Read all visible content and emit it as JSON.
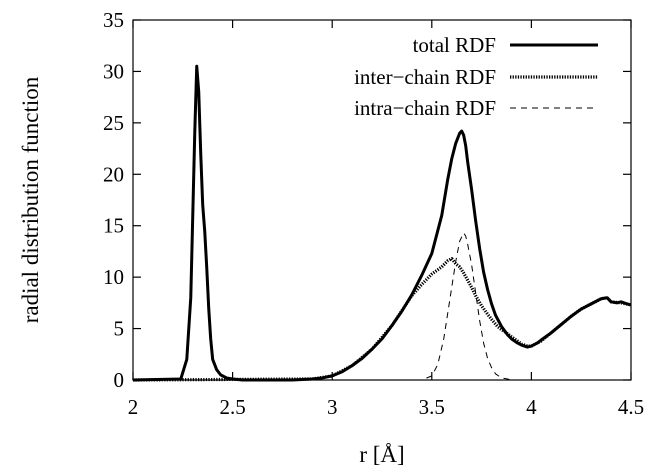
{
  "chart_data": {
    "type": "line",
    "title": "",
    "xlabel": "r [Å]",
    "ylabel": "radial distribution function",
    "xlim": [
      2,
      4.5
    ],
    "ylim": [
      0,
      35
    ],
    "xticks": [
      "2",
      "2.5",
      "3",
      "3.5",
      "4",
      "4.5"
    ],
    "yticks": [
      "0",
      "5",
      "10",
      "15",
      "20",
      "25",
      "30",
      "35"
    ],
    "grid": false,
    "legend_position": "top-right",
    "series": [
      {
        "name": "total RDF",
        "style": "solid-thick",
        "color": "#000000",
        "x": [
          2.0,
          2.24,
          2.27,
          2.29,
          2.3,
          2.31,
          2.32,
          2.33,
          2.34,
          2.35,
          2.36,
          2.37,
          2.38,
          2.39,
          2.4,
          2.42,
          2.44,
          2.47,
          2.5,
          2.55,
          2.6,
          2.7,
          2.8,
          2.9,
          2.95,
          3.0,
          3.05,
          3.1,
          3.15,
          3.2,
          3.25,
          3.3,
          3.35,
          3.4,
          3.45,
          3.5,
          3.55,
          3.58,
          3.6,
          3.62,
          3.64,
          3.65,
          3.66,
          3.67,
          3.68,
          3.7,
          3.72,
          3.74,
          3.76,
          3.78,
          3.8,
          3.82,
          3.85,
          3.88,
          3.9,
          3.93,
          3.95,
          3.98,
          4.0,
          4.03,
          4.05,
          4.1,
          4.15,
          4.2,
          4.25,
          4.3,
          4.35,
          4.38,
          4.4,
          4.43,
          4.45,
          4.48,
          4.5
        ],
        "y": [
          0,
          0.1,
          2,
          8,
          16,
          24,
          30.5,
          28,
          22,
          17,
          14.5,
          11,
          7,
          4,
          2,
          1,
          0.5,
          0.2,
          0.1,
          0,
          0,
          0,
          0,
          0.1,
          0.2,
          0.4,
          0.8,
          1.4,
          2.1,
          3.0,
          4.0,
          5.3,
          6.7,
          8.3,
          10.2,
          12.3,
          16,
          19.5,
          21.5,
          23,
          24,
          24.2,
          23.8,
          22.8,
          21.2,
          18.5,
          15.5,
          12.8,
          10.5,
          8.8,
          7.4,
          6.3,
          5.2,
          4.4,
          4.0,
          3.6,
          3.4,
          3.2,
          3.3,
          3.6,
          3.9,
          4.6,
          5.4,
          6.2,
          6.9,
          7.4,
          7.9,
          8.0,
          7.6,
          7.5,
          7.6,
          7.4,
          7.3
        ]
      },
      {
        "name": "inter−chain RDF",
        "style": "dotted-thick",
        "color": "#000000",
        "x": [
          2.0,
          2.9,
          3.0,
          3.1,
          3.2,
          3.3,
          3.4,
          3.45,
          3.5,
          3.55,
          3.58,
          3.6,
          3.62,
          3.64,
          3.66,
          3.68,
          3.7,
          3.72,
          3.75,
          3.78,
          3.8,
          3.83,
          3.85,
          3.88,
          3.9,
          3.93,
          3.95,
          3.98,
          4.0,
          4.05,
          4.1,
          4.15,
          4.2,
          4.25,
          4.3,
          4.35,
          4.38,
          4.4,
          4.45,
          4.5
        ],
        "y": [
          0,
          0.1,
          0.4,
          1.4,
          3.0,
          5.3,
          8.2,
          9.3,
          10.3,
          11.0,
          11.6,
          11.8,
          11.3,
          11.0,
          10.4,
          9.7,
          9.0,
          8.2,
          7.2,
          6.4,
          5.9,
          5.2,
          4.9,
          4.5,
          4.2,
          3.8,
          3.5,
          3.3,
          3.3,
          3.8,
          4.6,
          5.4,
          6.2,
          6.9,
          7.4,
          7.9,
          8.0,
          7.6,
          7.5,
          7.3
        ]
      },
      {
        "name": "intra−chain RDF",
        "style": "dashed-thin",
        "color": "#000000",
        "x": [
          2.0,
          2.24,
          2.27,
          2.29,
          2.3,
          2.31,
          2.32,
          2.33,
          2.34,
          2.35,
          2.36,
          2.37,
          2.38,
          2.39,
          2.4,
          2.42,
          2.44,
          2.47,
          2.5,
          3.45,
          3.5,
          3.53,
          3.56,
          3.58,
          3.6,
          3.62,
          3.64,
          3.66,
          3.67,
          3.68,
          3.7,
          3.72,
          3.74,
          3.76,
          3.78,
          3.8,
          3.82,
          3.85,
          3.88,
          3.9,
          4.5
        ],
        "y": [
          0,
          0.1,
          2,
          8,
          16,
          24,
          30.5,
          28,
          22,
          17,
          14.5,
          11,
          7,
          4,
          2,
          1,
          0.5,
          0.2,
          0,
          0,
          0.4,
          1.5,
          4,
          6.5,
          9,
          11.5,
          13.5,
          14.3,
          14.0,
          13.2,
          11.2,
          8.5,
          5.8,
          3.6,
          2.1,
          1.2,
          0.6,
          0.2,
          0.1,
          0,
          0
        ]
      }
    ]
  }
}
